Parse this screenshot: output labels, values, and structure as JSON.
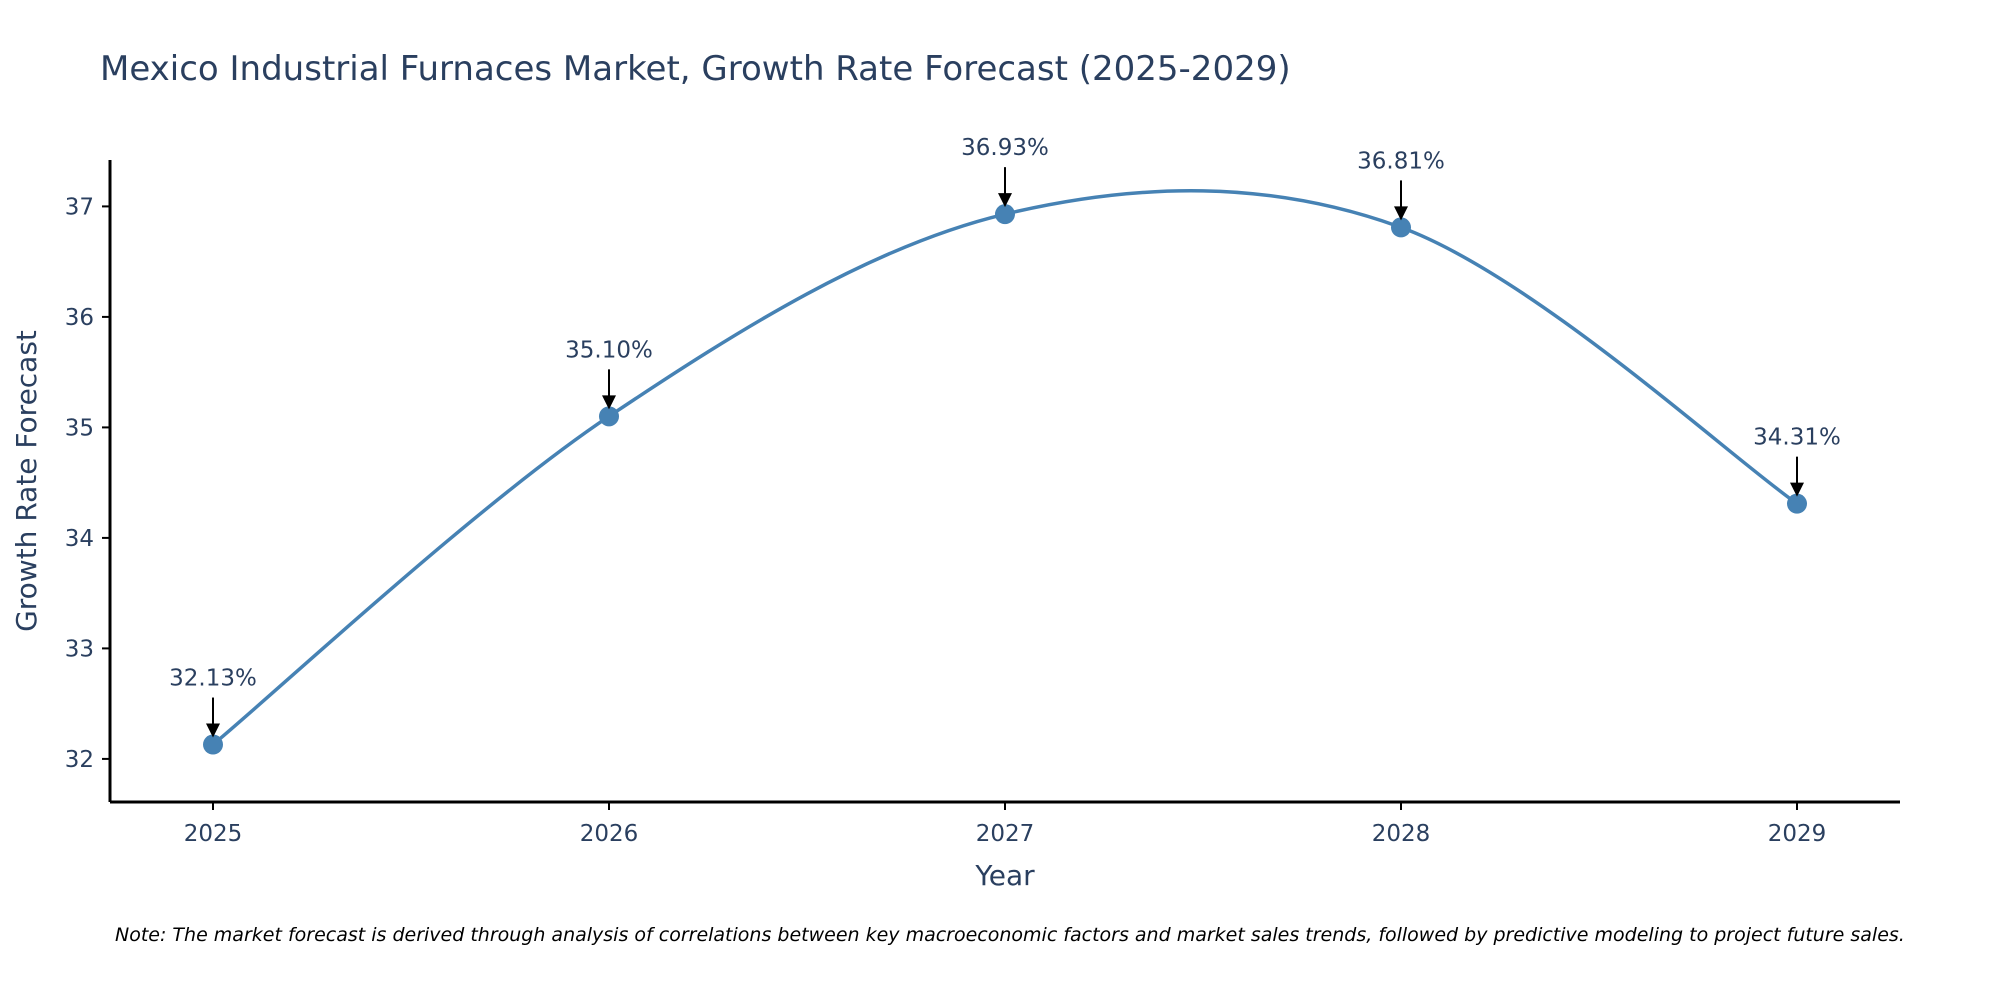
{
  "chart_data": {
    "type": "line",
    "title": "Mexico Industrial Furnaces Market, Growth Rate Forecast (2025-2029)",
    "xlabel": "Year",
    "ylabel": "Growth Rate Forecast",
    "categories": [
      "2025",
      "2026",
      "2027",
      "2028",
      "2029"
    ],
    "values": [
      32.13,
      35.1,
      36.93,
      36.81,
      34.31
    ],
    "data_labels": [
      "32.13%",
      "35.10%",
      "36.93%",
      "36.81%",
      "34.31%"
    ],
    "yticks": [
      32,
      33,
      34,
      35,
      36,
      37
    ],
    "ylim": [
      31.61,
      37.42
    ],
    "line_shape": "spline",
    "grid": false,
    "colors": {
      "line": "#4682b4",
      "marker": "#4682b4",
      "arrow": "#000000",
      "axis": "#000000"
    },
    "note": "Note: The market forecast is derived through analysis of correlations between key macroeconomic factors and market sales trends, followed by predictive modeling to project future sales."
  }
}
